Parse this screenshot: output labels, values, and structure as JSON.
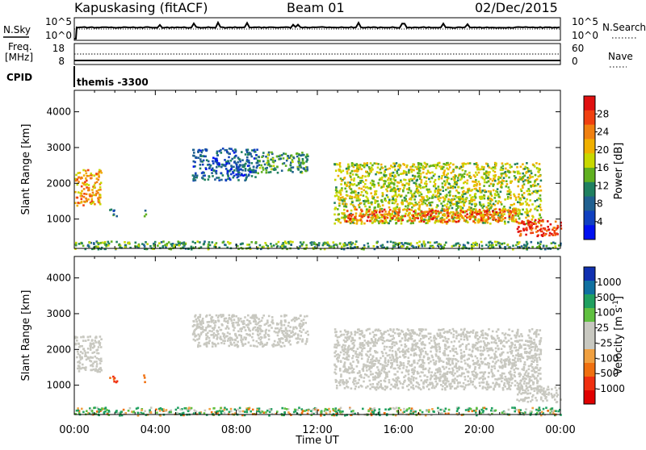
{
  "header": {
    "station": "Kapuskasing (fitACF)",
    "beam": "Beam 01",
    "date": "02/Dec/2015"
  },
  "sky_panel": {
    "left_label": "N.Sky",
    "right_label": "N.Search",
    "left_ticks": [
      "10^5",
      "10^0"
    ],
    "right_ticks": [
      "10^5",
      "10^0"
    ]
  },
  "freq_panel": {
    "left_label_line1": "Freq.",
    "left_label_line2": "[MHz]",
    "right_label": "Nave",
    "left_ticks": [
      "18",
      "8"
    ],
    "right_ticks": [
      "60",
      "0"
    ]
  },
  "cpid": {
    "label": "CPID",
    "value": "themis -3300"
  },
  "power_panel": {
    "ylabel": "Slant Range [km]",
    "colorbar_label": "Power [dB]",
    "colorbar_ticks": [
      "28",
      "24",
      "20",
      "16",
      "12",
      "8",
      "4"
    ],
    "colorbar_colors": [
      "#e01010",
      "#f04010",
      "#f08010",
      "#f0b000",
      "#c8d800",
      "#60b020",
      "#208060",
      "#206090",
      "#1040c0",
      "#0010f0"
    ]
  },
  "velocity_panel": {
    "ylabel": "Slant Range [km]",
    "colorbar_label": "Velocity [m s",
    "colorbar_label_sup": "-1",
    "colorbar_label_end": "]",
    "colorbar_ticks": [
      "1000",
      "500",
      "100",
      "25",
      "-25",
      "-100",
      "-500",
      "-1000"
    ],
    "colorbar_colors": [
      "#1030b0",
      "#1070a0",
      "#20a060",
      "#60c040",
      "#c8c8c0",
      "#c8c8c0",
      "#f0a040",
      "#f07010",
      "#f03010",
      "#e00000"
    ]
  },
  "x_axis": {
    "label": "Time UT",
    "ticks": [
      "00:00",
      "04:00",
      "08:00",
      "12:00",
      "16:00",
      "20:00",
      "00:00"
    ]
  },
  "chart_data": [
    {
      "type": "heatmap",
      "title": "Power",
      "xlabel": "Time UT",
      "ylabel": "Slant Range [km]",
      "x_ticks": [
        "00:00",
        "04:00",
        "08:00",
        "12:00",
        "16:00",
        "20:00",
        "00:00"
      ],
      "y_ticks": [
        1000,
        2000,
        3000,
        4000
      ],
      "ylim": [
        180,
        4600
      ],
      "xlim_hours": [
        0,
        24
      ],
      "colorbar": {
        "label": "Power [dB]",
        "ticks": [
          28,
          24,
          20,
          16,
          12,
          8,
          4
        ],
        "range": [
          0,
          30
        ]
      },
      "regions": [
        {
          "t_start": 0.0,
          "t_end": 1.3,
          "range_min": 1400,
          "range_max": 2400,
          "power_db": 21
        },
        {
          "t_start": 1.7,
          "t_end": 2.1,
          "range_min": 1100,
          "range_max": 1300,
          "power_db": 10
        },
        {
          "t_start": 3.3,
          "t_end": 3.5,
          "range_min": 1100,
          "range_max": 1300,
          "power_db": 12
        },
        {
          "t_start": 5.8,
          "t_end": 9.0,
          "range_min": 2100,
          "range_max": 3000,
          "power_db": 7
        },
        {
          "t_start": 9.0,
          "t_end": 11.5,
          "range_min": 2300,
          "range_max": 2900,
          "power_db": 11
        },
        {
          "t_start": 12.8,
          "t_end": 23.0,
          "range_min": 900,
          "range_max": 2600,
          "power_db": 16
        },
        {
          "t_start": 13.3,
          "t_end": 21.8,
          "range_min": 950,
          "range_max": 1300,
          "power_db": 24
        },
        {
          "t_start": 21.8,
          "t_end": 24.0,
          "range_min": 550,
          "range_max": 1000,
          "power_db": 27
        },
        {
          "t_start": 0.0,
          "t_end": 24.0,
          "range_min": 180,
          "range_max": 400,
          "power_db": 12
        }
      ]
    },
    {
      "type": "heatmap",
      "title": "Velocity",
      "xlabel": "Time UT",
      "ylabel": "Slant Range [km]",
      "x_ticks": [
        "00:00",
        "04:00",
        "08:00",
        "12:00",
        "16:00",
        "20:00",
        "00:00"
      ],
      "y_ticks": [
        1000,
        2000,
        3000,
        4000
      ],
      "ylim": [
        180,
        4600
      ],
      "xlim_hours": [
        0,
        24
      ],
      "colorbar": {
        "label": "Velocity [m s-1]",
        "ticks": [
          1000,
          500,
          100,
          25,
          -25,
          -100,
          -500,
          -1000
        ]
      },
      "regions": [
        {
          "t_start": 0.0,
          "t_end": 1.3,
          "range_min": 1400,
          "range_max": 2400,
          "velocity": 0
        },
        {
          "t_start": 1.7,
          "t_end": 2.1,
          "range_min": 1100,
          "range_max": 1300,
          "velocity": -300
        },
        {
          "t_start": 3.3,
          "t_end": 3.5,
          "range_min": 1100,
          "range_max": 1300,
          "velocity": -200
        },
        {
          "t_start": 5.8,
          "t_end": 11.5,
          "range_min": 2100,
          "range_max": 3000,
          "velocity": 0
        },
        {
          "t_start": 12.8,
          "t_end": 23.0,
          "range_min": 900,
          "range_max": 2600,
          "velocity": 0
        },
        {
          "t_start": 21.8,
          "t_end": 24.0,
          "range_min": 550,
          "range_max": 1000,
          "velocity": 0
        },
        {
          "t_start": 0.0,
          "t_end": 24.0,
          "range_min": 180,
          "range_max": 400,
          "velocity": 50
        }
      ]
    }
  ]
}
